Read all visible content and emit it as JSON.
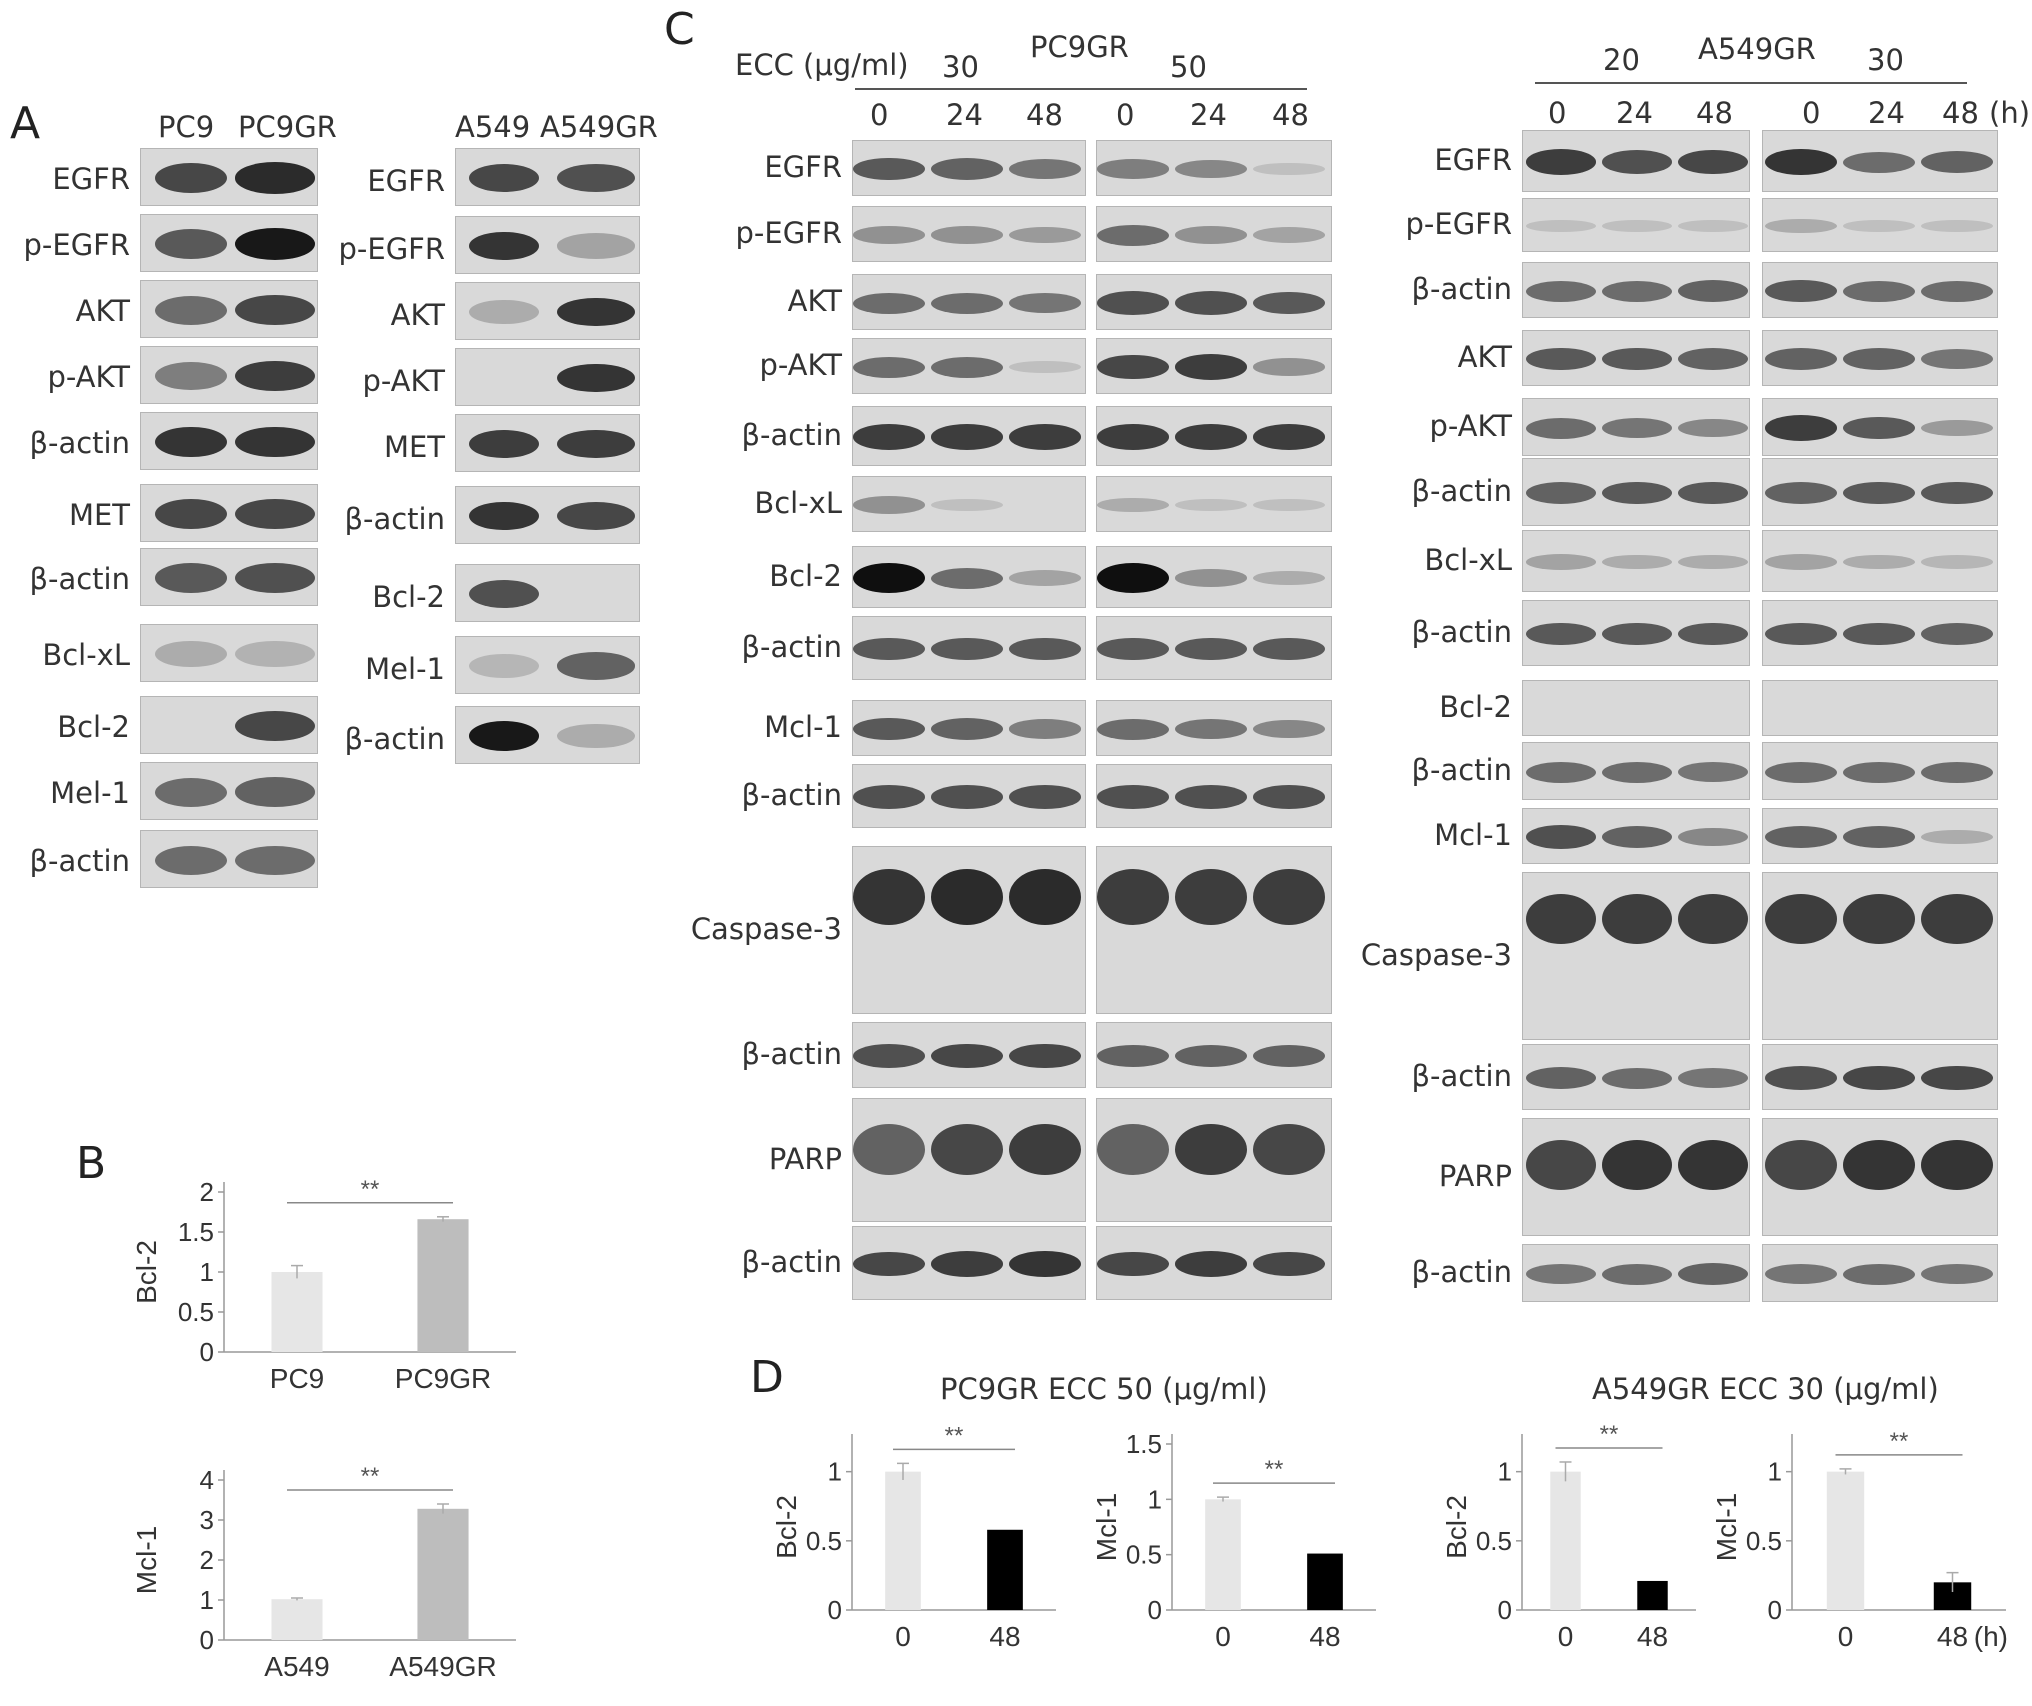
{
  "panel_letters": [
    "A",
    "B",
    "C",
    "D"
  ],
  "panelA": {
    "left": {
      "columns": [
        "PC9",
        "PC9GR"
      ],
      "rows": [
        {
          "label": "EGFR",
          "bands": [
            0.7,
            0.85
          ]
        },
        {
          "label": "p-EGFR",
          "bands": [
            0.6,
            0.95
          ]
        },
        {
          "label": "AKT",
          "bands": [
            0.5,
            0.7
          ]
        },
        {
          "label": "p-AKT",
          "bands": [
            0.4,
            0.75
          ]
        },
        {
          "label": "β-actin",
          "bands": [
            0.8,
            0.8
          ]
        },
        {
          "label": "MET",
          "bands": [
            0.7,
            0.7
          ]
        },
        {
          "label": "β-actin",
          "bands": [
            0.6,
            0.65
          ]
        },
        {
          "label": "Bcl-xL",
          "bands": [
            0.15,
            0.12
          ]
        },
        {
          "label": "Bcl-2",
          "bands": [
            0.0,
            0.7
          ]
        },
        {
          "label": "Mel-1",
          "bands": [
            0.5,
            0.55
          ]
        },
        {
          "label": "β-actin",
          "bands": [
            0.5,
            0.5
          ]
        }
      ]
    },
    "right": {
      "columns": [
        "A549",
        "A549GR"
      ],
      "rows": [
        {
          "label": "EGFR",
          "bands": [
            0.7,
            0.65
          ]
        },
        {
          "label": "p-EGFR",
          "bands": [
            0.8,
            0.2
          ]
        },
        {
          "label": "AKT",
          "bands": [
            0.15,
            0.8
          ]
        },
        {
          "label": "p-AKT",
          "bands": [
            0.0,
            0.8
          ]
        },
        {
          "label": "MET",
          "bands": [
            0.75,
            0.75
          ]
        },
        {
          "label": "β-actin",
          "bands": [
            0.8,
            0.7
          ]
        },
        {
          "label": "Bcl-2",
          "bands": [
            0.65,
            0.0
          ]
        },
        {
          "label": "Mel-1",
          "bands": [
            0.1,
            0.55
          ]
        },
        {
          "label": "β-actin",
          "bands": [
            0.95,
            0.15
          ]
        }
      ]
    }
  },
  "panelC": {
    "ecc_label": "ECC (μg/ml)",
    "unit_h": "(h)",
    "pc9gr": {
      "title": "PC9GR",
      "doses": [
        "30",
        "50"
      ],
      "times": [
        "0",
        "24",
        "48"
      ],
      "rows": [
        {
          "label": "EGFR",
          "a": [
            0.6,
            0.55,
            0.45
          ],
          "b": [
            0.4,
            0.35,
            0.05
          ]
        },
        {
          "label": "p-EGFR",
          "a": [
            0.3,
            0.3,
            0.25
          ],
          "b": [
            0.5,
            0.3,
            0.2
          ]
        },
        {
          "label": "AKT",
          "a": [
            0.5,
            0.5,
            0.45
          ],
          "b": [
            0.65,
            0.65,
            0.6
          ]
        },
        {
          "label": "p-AKT",
          "a": [
            0.5,
            0.5,
            0.05
          ],
          "b": [
            0.7,
            0.75,
            0.3
          ]
        },
        {
          "label": "β-actin",
          "a": [
            0.75,
            0.75,
            0.75
          ],
          "b": [
            0.75,
            0.75,
            0.75
          ]
        },
        {
          "label": "Bcl-xL",
          "a": [
            0.3,
            0.05,
            0.0
          ],
          "b": [
            0.15,
            0.05,
            0.05
          ]
        },
        {
          "label": "Bcl-2",
          "a": [
            1.0,
            0.5,
            0.2
          ],
          "b": [
            1.0,
            0.3,
            0.15
          ]
        },
        {
          "label": "β-actin",
          "a": [
            0.6,
            0.6,
            0.6
          ],
          "b": [
            0.6,
            0.6,
            0.6
          ]
        },
        {
          "label": "Mcl-1",
          "a": [
            0.6,
            0.55,
            0.4
          ],
          "b": [
            0.5,
            0.45,
            0.35
          ]
        },
        {
          "label": "β-actin",
          "a": [
            0.65,
            0.65,
            0.65
          ],
          "b": [
            0.65,
            0.65,
            0.65
          ]
        },
        {
          "label": "Caspase-3",
          "a": [
            0.8,
            0.85,
            0.85
          ],
          "b": [
            0.75,
            0.75,
            0.75
          ]
        },
        {
          "label": "β-actin",
          "a": [
            0.65,
            0.7,
            0.7
          ],
          "b": [
            0.55,
            0.55,
            0.55
          ]
        },
        {
          "label": "PARP",
          "a": [
            0.55,
            0.7,
            0.75
          ],
          "b": [
            0.55,
            0.75,
            0.7
          ]
        },
        {
          "label": "β-actin",
          "a": [
            0.7,
            0.75,
            0.8
          ],
          "b": [
            0.7,
            0.75,
            0.7
          ]
        }
      ]
    },
    "a549gr": {
      "title": "A549GR",
      "doses": [
        "20",
        "30"
      ],
      "times": [
        "0",
        "24",
        "48"
      ],
      "rows": [
        {
          "label": "EGFR",
          "a": [
            0.75,
            0.65,
            0.7
          ],
          "b": [
            0.8,
            0.5,
            0.55
          ]
        },
        {
          "label": "p-EGFR",
          "a": [
            0.05,
            0.05,
            0.05
          ],
          "b": [
            0.15,
            0.05,
            0.05
          ]
        },
        {
          "label": "β-actin",
          "a": [
            0.5,
            0.5,
            0.55
          ],
          "b": [
            0.6,
            0.5,
            0.5
          ]
        },
        {
          "label": "AKT",
          "a": [
            0.6,
            0.6,
            0.55
          ],
          "b": [
            0.55,
            0.55,
            0.45
          ]
        },
        {
          "label": "p-AKT",
          "a": [
            0.5,
            0.45,
            0.35
          ],
          "b": [
            0.75,
            0.6,
            0.25
          ]
        },
        {
          "label": "β-actin",
          "a": [
            0.55,
            0.6,
            0.6
          ],
          "b": [
            0.55,
            0.6,
            0.6
          ]
        },
        {
          "label": "Bcl-xL",
          "a": [
            0.2,
            0.15,
            0.15
          ],
          "b": [
            0.2,
            0.15,
            0.1
          ]
        },
        {
          "label": "β-actin",
          "a": [
            0.6,
            0.6,
            0.6
          ],
          "b": [
            0.6,
            0.6,
            0.55
          ]
        },
        {
          "label": "Bcl-2",
          "a": [
            0.0,
            0.0,
            0.0
          ],
          "b": [
            0.0,
            0.0,
            0.0
          ]
        },
        {
          "label": "β-actin",
          "a": [
            0.5,
            0.5,
            0.45
          ],
          "b": [
            0.5,
            0.5,
            0.5
          ]
        },
        {
          "label": "Mcl-1",
          "a": [
            0.65,
            0.55,
            0.35
          ],
          "b": [
            0.55,
            0.55,
            0.15
          ]
        },
        {
          "label": "Caspase-3",
          "a": [
            0.75,
            0.75,
            0.75
          ],
          "b": [
            0.75,
            0.75,
            0.75
          ]
        },
        {
          "label": "β-actin",
          "a": [
            0.55,
            0.5,
            0.45
          ],
          "b": [
            0.65,
            0.7,
            0.7
          ]
        },
        {
          "label": "PARP",
          "a": [
            0.7,
            0.8,
            0.8
          ],
          "b": [
            0.7,
            0.8,
            0.8
          ]
        },
        {
          "label": "β-actin",
          "a": [
            0.45,
            0.5,
            0.55
          ],
          "b": [
            0.45,
            0.5,
            0.45
          ]
        }
      ]
    }
  },
  "chart_data": [
    {
      "panel": "B",
      "type": "bar",
      "ylabel": "Bcl-2",
      "categories": [
        "PC9",
        "PC9GR"
      ],
      "values": [
        1.0,
        1.66
      ],
      "errors": [
        0.08,
        0.03
      ],
      "ylim": [
        0,
        2
      ],
      "yticks": [
        "0",
        "0.5",
        "1",
        "1.5",
        "2"
      ],
      "significance": "**",
      "colors": [
        "#e6e6e6",
        "#bdbdbd"
      ]
    },
    {
      "panel": "B",
      "type": "bar",
      "ylabel": "Mcl-1",
      "categories": [
        "A549",
        "A549GR"
      ],
      "values": [
        1.02,
        3.28
      ],
      "errors": [
        0.03,
        0.12
      ],
      "ylim": [
        0,
        4
      ],
      "yticks": [
        "0",
        "1",
        "2",
        "3",
        "4"
      ],
      "significance": "**",
      "colors": [
        "#e6e6e6",
        "#bdbdbd"
      ]
    },
    {
      "panel": "D",
      "type": "bar",
      "title": "PC9GR ECC 50 (μg/ml)",
      "ylabel": "Bcl-2",
      "categories": [
        "0",
        "48"
      ],
      "values": [
        1.0,
        0.58
      ],
      "errors": [
        0.06,
        0.0
      ],
      "ylim": [
        0,
        1.2
      ],
      "yticks": [
        "0",
        "0.5",
        "1"
      ],
      "significance": "**",
      "colors": [
        "#e6e6e6",
        "#000000"
      ]
    },
    {
      "panel": "D",
      "type": "bar",
      "ylabel": "Mcl-1",
      "categories": [
        "0",
        "48"
      ],
      "values": [
        1.0,
        0.51
      ],
      "errors": [
        0.02,
        0.0
      ],
      "ylim": [
        0,
        1.5
      ],
      "yticks": [
        "0",
        "0.5",
        "1",
        "1.5"
      ],
      "significance": "**",
      "colors": [
        "#e6e6e6",
        "#000000"
      ]
    },
    {
      "panel": "D",
      "type": "bar",
      "title": "A549GR ECC 30 (μg/ml)",
      "ylabel": "Bcl-2",
      "categories": [
        "0",
        "48"
      ],
      "values": [
        1.0,
        0.21
      ],
      "errors": [
        0.07,
        0.0
      ],
      "ylim": [
        0,
        1.2
      ],
      "yticks": [
        "0",
        "0.5",
        "1"
      ],
      "significance": "**",
      "colors": [
        "#e6e6e6",
        "#000000"
      ]
    },
    {
      "panel": "D",
      "type": "bar",
      "ylabel": "Mcl-1",
      "categories": [
        "0",
        "48"
      ],
      "x_unit": "(h)",
      "values": [
        1.0,
        0.2
      ],
      "errors": [
        0.02,
        0.07
      ],
      "ylim": [
        0,
        1.2
      ],
      "yticks": [
        "0",
        "0.5",
        "1"
      ],
      "significance": "**",
      "colors": [
        "#e6e6e6",
        "#000000"
      ]
    }
  ]
}
